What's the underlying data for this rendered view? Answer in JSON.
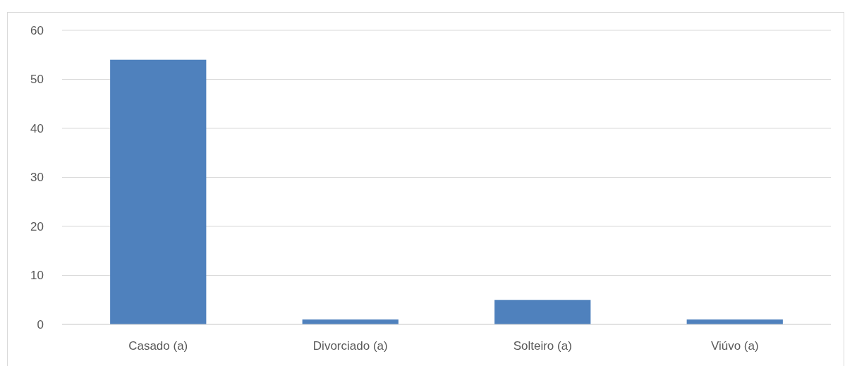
{
  "chart_data": {
    "type": "bar",
    "categories": [
      "Casado (a)",
      "Divorciado (a)",
      "Solteiro (a)",
      "Viúvo (a)"
    ],
    "values": [
      54,
      1,
      5,
      1
    ],
    "color": "#4f81bd",
    "ylim": [
      0,
      60
    ],
    "yticks": [
      0,
      10,
      20,
      30,
      40,
      50,
      60
    ],
    "grid": "y"
  }
}
